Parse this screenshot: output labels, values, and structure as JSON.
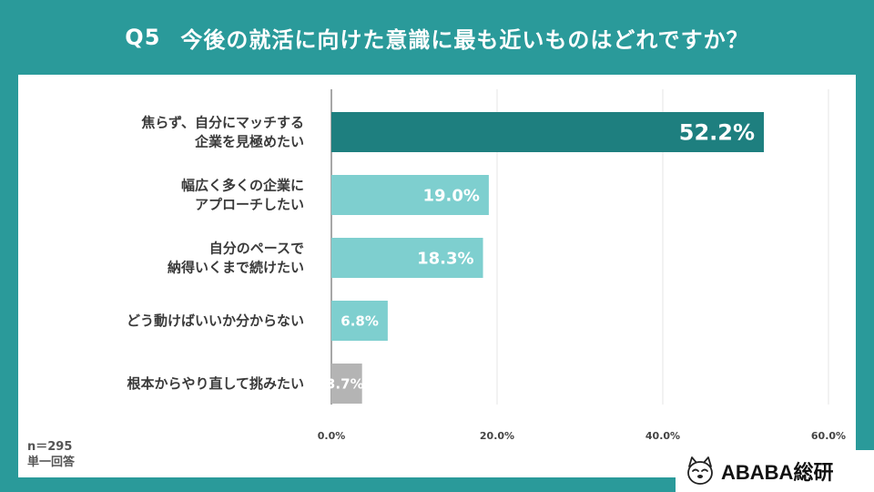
{
  "header": {
    "question_number": "Q5",
    "question_text": "今後の就活に向けた意識に最も近いものはどれですか？"
  },
  "notes": {
    "sample_size": "n＝295",
    "answer_type": "単一回答"
  },
  "brand": {
    "name": "ABABA総研"
  },
  "colors": {
    "background": "#2a9a9a",
    "bar_primary": "#1e7f7f",
    "bar_secondary": "#7ecfcf",
    "bar_muted": "#b4b4b4"
  },
  "chart_data": {
    "type": "bar",
    "orientation": "horizontal",
    "categories": [
      [
        "焦らず、自分にマッチする",
        "企業を見極めたい"
      ],
      [
        "幅広く多くの企業に",
        "アプローチしたい"
      ],
      [
        "自分のペースで",
        "納得いくまで続けたい"
      ],
      [
        "どう動けばいいか分からない"
      ],
      [
        "根本からやり直して挑みたい"
      ]
    ],
    "values": [
      52.2,
      19.0,
      18.3,
      6.8,
      3.7
    ],
    "value_labels": [
      "52.2%",
      "19.0%",
      "18.3%",
      "6.8%",
      "3.7%"
    ],
    "bar_colors": [
      "#1e7f7f",
      "#7ecfcf",
      "#7ecfcf",
      "#7ecfcf",
      "#b4b4b4"
    ],
    "xlim": [
      0,
      60
    ],
    "xticks": [
      0,
      20,
      40,
      60
    ],
    "xtick_labels": [
      "0.0%",
      "20.0%",
      "40.0%",
      "60.0%"
    ],
    "grid": true
  }
}
